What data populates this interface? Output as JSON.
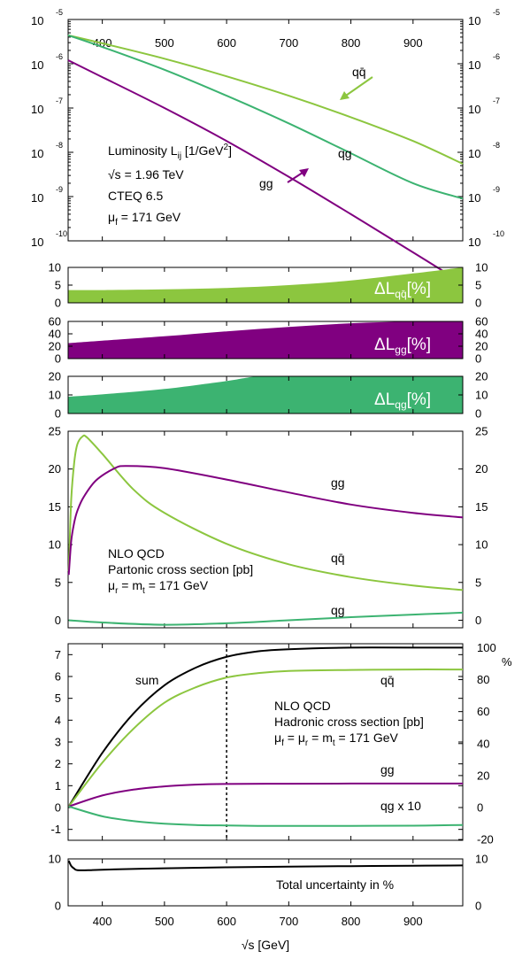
{
  "colors": {
    "qqbar": "#8cc63f",
    "gg": "#800080",
    "qg": "#3cb371",
    "sum": "#000000"
  },
  "chart_data": [
    {
      "type": "line",
      "panel": "luminosity",
      "y_scale": "log",
      "xlim": [
        345,
        980
      ],
      "ylim": [
        1e-10,
        1e-05
      ],
      "x_ticks": [
        "400",
        "500",
        "600",
        "700",
        "800",
        "900"
      ],
      "y_tick_base": "10",
      "y_tick_exp_left": [
        "-5",
        "-6",
        "-7",
        "-8",
        "-9",
        "-10"
      ],
      "y_tick_exp_right": [
        "-5",
        "-6",
        "-7",
        "-8",
        "-9",
        "-10"
      ],
      "annotation": {
        "luminosity": "Luminosity L",
        "ij": "ij",
        "unit": " [1/GeV",
        "unit_exp": "2",
        "unit_close": "]",
        "sqrt_s": "√s = 1.96 TeV",
        "pdf": "CTEQ 6.5",
        "mu": "μ",
        "mu_sub": "f",
        "mu_val": " = 171 GeV"
      },
      "series": [
        {
          "name": "qq̄",
          "x": [
            345,
            400,
            500,
            600,
            700,
            800,
            900,
            980
          ],
          "y": [
            4.4e-06,
            2.9e-06,
            1.3e-06,
            5.2e-07,
            1.9e-07,
            6.2e-08,
            1.8e-08,
            5.5e-09
          ]
        },
        {
          "name": "qg",
          "x": [
            345,
            400,
            500,
            600,
            700,
            800,
            900,
            980
          ],
          "y": [
            4.4e-06,
            2.4e-06,
            7.3e-07,
            1.9e-07,
            4.5e-08,
            9.5e-09,
            2e-09,
            9e-10
          ]
        },
        {
          "name": "gg",
          "x": [
            345,
            400,
            500,
            600,
            700,
            800,
            900,
            980
          ],
          "y": [
            1.2e-06,
            5e-07,
            1e-07,
            1.8e-08,
            2.8e-09,
            4e-10,
            5.5e-11,
            1.1e-11
          ]
        }
      ]
    },
    {
      "type": "area",
      "panel": "delta-lqqbar",
      "label": "ΔL",
      "label_sub": "qq̄",
      "label_unit": "[%]",
      "xlim": [
        345,
        980
      ],
      "ylim": [
        0,
        10
      ],
      "y_ticks": [
        "0",
        "5",
        "10"
      ],
      "x": [
        345,
        400,
        500,
        600,
        700,
        800,
        900,
        980
      ],
      "y": [
        3.6,
        3.6,
        3.8,
        4.2,
        5.0,
        6.3,
        8.3,
        10
      ]
    },
    {
      "type": "area",
      "panel": "delta-lgg",
      "label": "ΔL",
      "label_sub": "gg",
      "label_unit": "[%]",
      "xlim": [
        345,
        980
      ],
      "ylim": [
        0,
        60
      ],
      "y_ticks": [
        "0",
        "20",
        "40",
        "60"
      ],
      "x": [
        345,
        400,
        500,
        600,
        700,
        800,
        900,
        980
      ],
      "y": [
        25,
        29,
        36,
        44,
        51,
        57,
        60,
        60
      ]
    },
    {
      "type": "area",
      "panel": "delta-lqg",
      "label": "ΔL",
      "label_sub": "qg",
      "label_unit": "[%]",
      "xlim": [
        345,
        980
      ],
      "ylim": [
        0,
        20
      ],
      "y_ticks": [
        "0",
        "10",
        "20"
      ],
      "x": [
        345,
        400,
        500,
        600,
        650,
        700,
        800,
        980
      ],
      "y": [
        9,
        10.3,
        13.2,
        17.5,
        20,
        20,
        20,
        20
      ]
    },
    {
      "type": "line",
      "panel": "partonic",
      "xlim": [
        345,
        980
      ],
      "ylim": [
        -1,
        25
      ],
      "y_ticks": [
        "0",
        "5",
        "10",
        "15",
        "20",
        "25"
      ],
      "annotation": {
        "l1": "NLO QCD",
        "l2": "Partonic cross section [pb]",
        "mu": "μ",
        "mu_sub": "r",
        "mu_mid": " = m",
        "mt_sub": "t",
        "mu_val": " = 171 GeV"
      },
      "series": [
        {
          "name": "qq̄",
          "x": [
            346,
            350,
            355,
            360,
            368,
            375,
            400,
            450,
            500,
            600,
            700,
            800,
            900,
            980
          ],
          "y": [
            6.5,
            16,
            21,
            23.3,
            24.3,
            24.2,
            22,
            17.3,
            14.2,
            10.1,
            7.4,
            5.7,
            4.6,
            4.0
          ]
        },
        {
          "name": "gg",
          "x": [
            346,
            350,
            355,
            360,
            370,
            390,
            420,
            440,
            500,
            600,
            700,
            800,
            900,
            980
          ],
          "y": [
            6.0,
            10.5,
            13,
            14.5,
            16.3,
            18.5,
            20.1,
            20.4,
            20.1,
            18.6,
            16.9,
            15.3,
            14.2,
            13.6
          ]
        },
        {
          "name": "qg",
          "x": [
            346,
            400,
            500,
            600,
            700,
            800,
            900,
            980
          ],
          "y": [
            0,
            -0.3,
            -0.6,
            -0.4,
            0,
            0.4,
            0.75,
            1.0
          ]
        }
      ]
    },
    {
      "type": "line",
      "panel": "hadronic",
      "xlim": [
        345,
        980
      ],
      "ylim": [
        -1.5,
        7.5
      ],
      "y_ticks": [
        "-1",
        "0",
        "1",
        "2",
        "3",
        "4",
        "5",
        "6",
        "7"
      ],
      "y2_ticks": [
        "-20",
        "0",
        "20",
        "40",
        "60",
        "80",
        "100"
      ],
      "y2_label": "%",
      "annotation": {
        "l1": "NLO QCD",
        "l2": "Hadronic cross section [pb]",
        "mu_f": "μ",
        "f_sub": "f",
        "eq1": " = μ",
        "r_sub": "r",
        "eq2": " = m",
        "t_sub": "t",
        "val": " = 171 GeV"
      },
      "vline_x": 600,
      "series": [
        {
          "name": "sum",
          "x": [
            346,
            400,
            450,
            500,
            550,
            600,
            650,
            700,
            800,
            900,
            980
          ],
          "y": [
            0.05,
            2.5,
            4.3,
            5.6,
            6.4,
            6.9,
            7.15,
            7.25,
            7.32,
            7.32,
            7.32
          ]
        },
        {
          "name": "qq̄",
          "x": [
            346,
            400,
            450,
            500,
            550,
            600,
            650,
            700,
            800,
            900,
            980
          ],
          "y": [
            0.05,
            2.05,
            3.6,
            4.8,
            5.5,
            5.95,
            6.15,
            6.25,
            6.3,
            6.32,
            6.32
          ]
        },
        {
          "name": "gg",
          "x": [
            346,
            400,
            450,
            500,
            550,
            600,
            700,
            800,
            900,
            980
          ],
          "y": [
            0.05,
            0.55,
            0.82,
            0.97,
            1.05,
            1.08,
            1.09,
            1.1,
            1.1,
            1.1
          ]
        },
        {
          "name": "qg x 10",
          "x": [
            346,
            400,
            450,
            500,
            550,
            600,
            650,
            700,
            800,
            900,
            980
          ],
          "y": [
            0.05,
            -0.4,
            -0.62,
            -0.74,
            -0.8,
            -0.82,
            -0.84,
            -0.84,
            -0.84,
            -0.83,
            -0.8
          ]
        }
      ]
    },
    {
      "type": "line",
      "panel": "total-uncertainty",
      "label": "Total uncertainty in %",
      "xlim": [
        345,
        980
      ],
      "ylim": [
        0,
        10
      ],
      "y_ticks": [
        "0",
        "10"
      ],
      "x_ticks": [
        "400",
        "500",
        "600",
        "700",
        "800",
        "900"
      ],
      "xlabel": "√s [GeV]",
      "x": [
        346,
        350,
        355,
        360,
        380,
        400,
        500,
        600,
        700,
        800,
        900,
        980
      ],
      "y": [
        9.6,
        8.5,
        7.9,
        7.6,
        7.6,
        7.7,
        8.0,
        8.2,
        8.35,
        8.45,
        8.55,
        8.6
      ]
    }
  ]
}
